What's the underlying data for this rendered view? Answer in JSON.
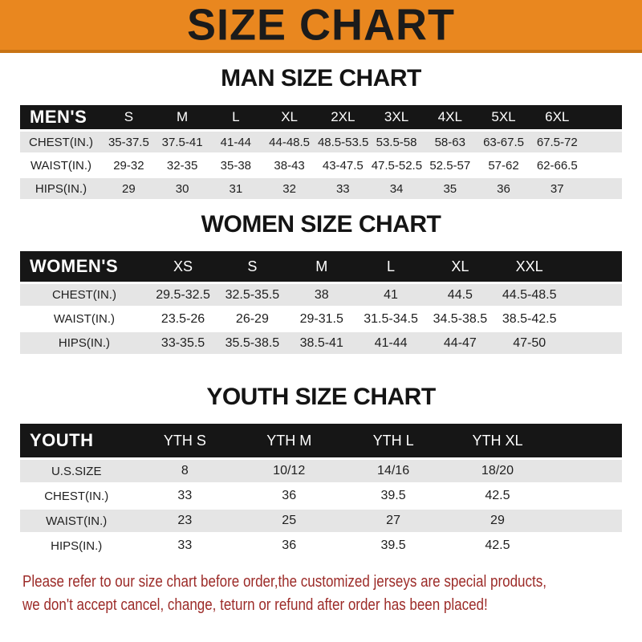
{
  "banner": {
    "title": "SIZE CHART"
  },
  "sections": [
    {
      "heading": "MAN SIZE CHART",
      "table": {
        "label": "MEN'S",
        "columns": [
          "S",
          "M",
          "L",
          "XL",
          "2XL",
          "3XL",
          "4XL",
          "5XL",
          "6XL"
        ],
        "rows": [
          {
            "label": "CHEST(IN.)",
            "values": [
              "35-37.5",
              "37.5-41",
              "41-44",
              "44-48.5",
              "48.5-53.5",
              "53.5-58",
              "58-63",
              "63-67.5",
              "67.5-72"
            ]
          },
          {
            "label": "WAIST(IN.)",
            "values": [
              "29-32",
              "32-35",
              "35-38",
              "38-43",
              "43-47.5",
              "47.5-52.5",
              "52.5-57",
              "57-62",
              "62-66.5"
            ]
          },
          {
            "label": "HIPS(IN.)",
            "values": [
              "29",
              "30",
              "31",
              "32",
              "33",
              "34",
              "35",
              "36",
              "37"
            ]
          }
        ]
      }
    },
    {
      "heading": "WOMEN SIZE CHART",
      "table": {
        "label": "WOMEN'S",
        "columns": [
          "XS",
          "S",
          "M",
          "L",
          "XL",
          "XXL"
        ],
        "rows": [
          {
            "label": "CHEST(IN.)",
            "values": [
              "29.5-32.5",
              "32.5-35.5",
              "38",
              "41",
              "44.5",
              "44.5-48.5"
            ]
          },
          {
            "label": "WAIST(IN.)",
            "values": [
              "23.5-26",
              "26-29",
              "29-31.5",
              "31.5-34.5",
              "34.5-38.5",
              "38.5-42.5"
            ]
          },
          {
            "label": "HIPS(IN.)",
            "values": [
              "33-35.5",
              "35.5-38.5",
              "38.5-41",
              "41-44",
              "44-47",
              "47-50"
            ]
          }
        ]
      }
    },
    {
      "heading": "YOUTH SIZE CHART",
      "table": {
        "label": "YOUTH",
        "columns": [
          "YTH S",
          "YTH M",
          "YTH L",
          "YTH XL"
        ],
        "rows": [
          {
            "label": "U.S.SIZE",
            "values": [
              "8",
              "10/12",
              "14/16",
              "18/20"
            ]
          },
          {
            "label": "CHEST(IN.)",
            "values": [
              "33",
              "36",
              "39.5",
              "42.5"
            ]
          },
          {
            "label": "WAIST(IN.)",
            "values": [
              "23",
              "25",
              "27",
              "29"
            ]
          },
          {
            "label": "HIPS(IN.)",
            "values": [
              "33",
              "36",
              "39.5",
              "42.5"
            ]
          }
        ]
      }
    }
  ],
  "footer": {
    "line1": "Please refer to our size chart before order,the customized jerseys are special products,",
    "line2": "we don't accept cancel, change, teturn or refund after order has been placed!"
  },
  "colors": {
    "banner_bg": "#E9871F",
    "banner_border": "#C87414",
    "header_bar_bg": "#161616",
    "header_bar_text": "#FFFFFF",
    "row_alt_bg": "#E5E5E5",
    "notice_text": "#9C2B28"
  }
}
